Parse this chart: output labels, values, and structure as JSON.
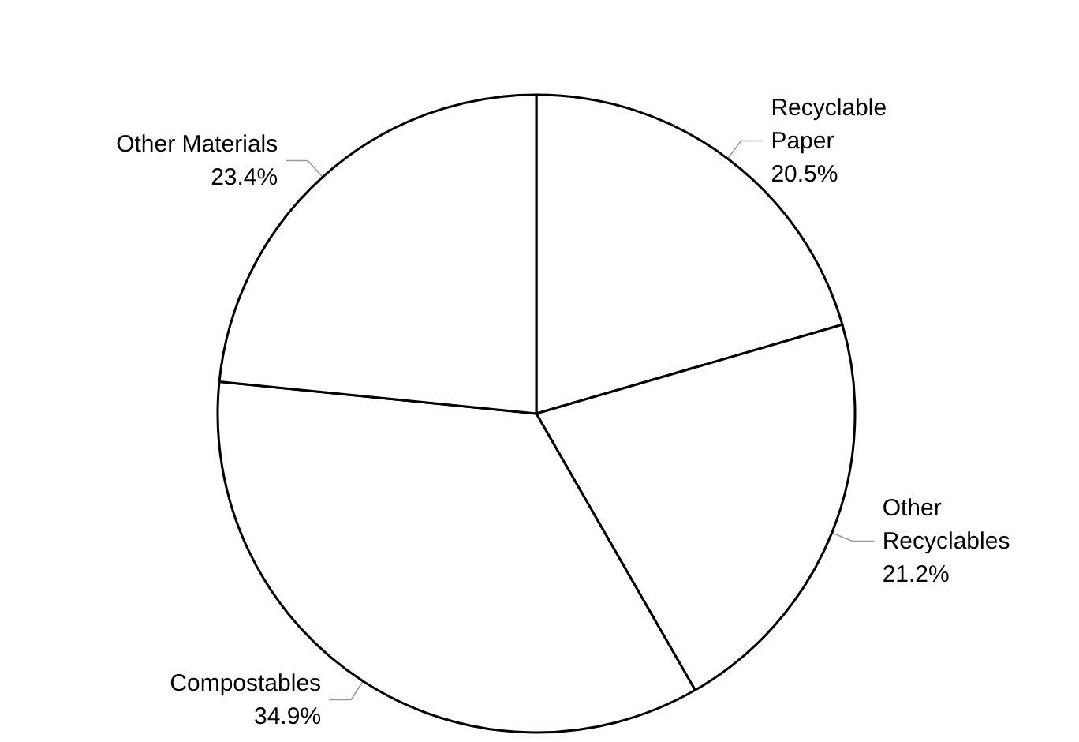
{
  "chart_data": {
    "type": "pie",
    "categories": [
      "Recyclable Paper",
      "Other Recyclables",
      "Compostables",
      "Other Materials"
    ],
    "values": [
      20.5,
      21.2,
      34.9,
      23.4
    ],
    "colors": [
      "#ffffff",
      "#ffffff",
      "#ffffff",
      "#ffffff"
    ],
    "value_labels": [
      "20.5%",
      "21.2%",
      "34.9%",
      "23.4%"
    ],
    "legend": false
  }
}
